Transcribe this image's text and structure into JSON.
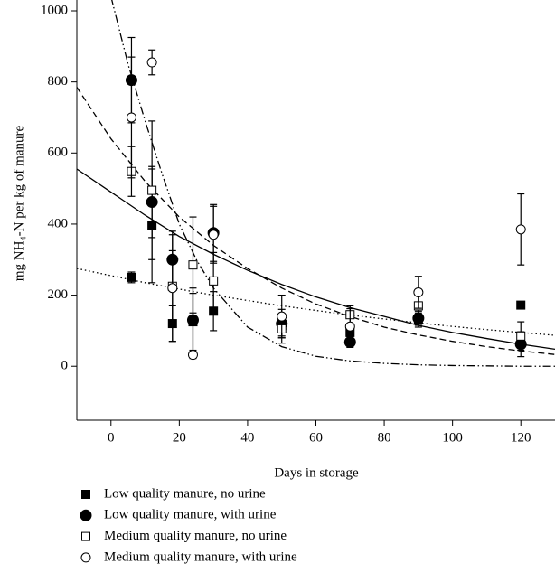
{
  "chart_data": {
    "type": "scatter",
    "x_label": "Days in storage",
    "y_label": "mg NH₄-N per kg of manure",
    "xlim": [
      -10,
      130
    ],
    "ylim": [
      -152,
      1000
    ],
    "xticks": [
      0,
      20,
      40,
      60,
      80,
      100,
      120
    ],
    "yticks": [
      0,
      200,
      400,
      600,
      800,
      1000
    ],
    "series": [
      {
        "name": "Low quality manure, no urine",
        "marker": "square",
        "filled": true,
        "color": "#000000",
        "x": [
          6,
          12,
          18,
          24,
          30,
          50,
          70,
          90,
          120
        ],
        "values": [
          250,
          395,
          120,
          125,
          155,
          115,
          95,
          130,
          172
        ],
        "errors": [
          15,
          160,
          50,
          80,
          55,
          30,
          20,
          20,
          0
        ]
      },
      {
        "name": "Low quality manure, with urine",
        "marker": "circle",
        "filled": true,
        "color": "#000000",
        "x": [
          6,
          12,
          18,
          24,
          30,
          50,
          70,
          90,
          120
        ],
        "values": [
          805,
          462,
          300,
          130,
          375,
          120,
          68,
          135,
          62
        ],
        "errors": [
          120,
          100,
          80,
          90,
          80,
          40,
          15,
          20,
          35
        ]
      },
      {
        "name": "Medium quality manure, no urine",
        "marker": "square",
        "filled": false,
        "color": "#000000",
        "x": [
          6,
          12,
          18,
          24,
          30,
          50,
          70,
          90,
          120
        ],
        "values": [
          548,
          495,
          225,
          285,
          240,
          105,
          145,
          170,
          85
        ],
        "errors": [
          70,
          195,
          100,
          135,
          80,
          40,
          25,
          30,
          40
        ]
      },
      {
        "name": "Medium quality manure, with urine",
        "marker": "circle",
        "filled": false,
        "color": "#000000",
        "x": [
          6,
          12,
          18,
          24,
          30,
          50,
          70,
          90,
          120
        ],
        "values": [
          700,
          855,
          220,
          32,
          370,
          140,
          112,
          208,
          385
        ],
        "errors": [
          170,
          35,
          150,
          10,
          80,
          60,
          50,
          45,
          100
        ]
      }
    ],
    "curves": [
      {
        "dash": "solid",
        "x": [
          -10,
          0,
          10,
          20,
          30,
          40,
          50,
          60,
          70,
          80,
          90,
          100,
          110,
          120,
          130
        ],
        "values": [
          555,
          490,
          425,
          365,
          315,
          270,
          230,
          195,
          165,
          140,
          115,
          95,
          78,
          62,
          48
        ]
      },
      {
        "dash": "dashed",
        "x": [
          -10,
          0,
          10,
          20,
          30,
          40,
          50,
          60,
          70,
          80,
          90,
          100,
          110,
          120,
          130
        ],
        "values": [
          785,
          640,
          520,
          420,
          340,
          275,
          220,
          175,
          140,
          110,
          88,
          70,
          55,
          43,
          33
        ]
      },
      {
        "dash": "dotted",
        "x": [
          -10,
          0,
          10,
          20,
          30,
          40,
          50,
          60,
          70,
          80,
          90,
          100,
          110,
          120,
          130
        ],
        "values": [
          275,
          255,
          235,
          217,
          200,
          185,
          170,
          157,
          144,
          133,
          122,
          112,
          103,
          95,
          87
        ]
      },
      {
        "dash": "dashdotdot",
        "x": [
          0,
          5,
          10,
          15,
          20,
          25,
          30,
          40,
          50,
          60,
          70,
          80,
          90,
          100,
          110,
          120,
          130
        ],
        "values": [
          1040,
          850,
          690,
          540,
          400,
          300,
          220,
          110,
          55,
          28,
          15,
          8,
          4,
          2,
          1,
          0,
          0
        ]
      }
    ]
  }
}
